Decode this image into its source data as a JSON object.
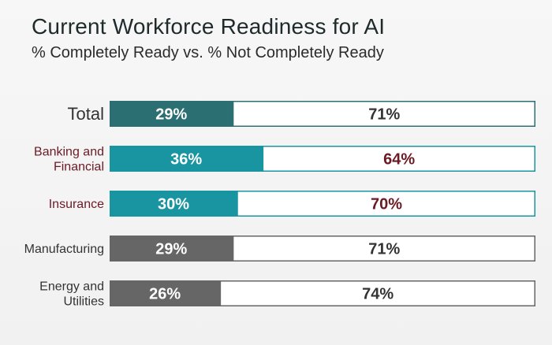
{
  "chart_data": {
    "type": "bar",
    "stacked": true,
    "orientation": "horizontal",
    "title": "Current Workforce Readiness for AI",
    "subtitle": "% Completely Ready vs. % Not Completely Ready",
    "categories": [
      "Total",
      "Banking and Financial",
      "Insurance",
      "Manufacturing",
      "Energy and Utilities"
    ],
    "category_lines": [
      [
        "Total"
      ],
      [
        "Banking and",
        "Financial"
      ],
      [
        "Insurance"
      ],
      [
        "Manufacturing"
      ],
      [
        "Energy and",
        "Utilities"
      ]
    ],
    "series": [
      {
        "values": [
          29,
          36,
          30,
          29,
          26
        ]
      },
      {
        "values": [
          71,
          64,
          70,
          71,
          74
        ]
      }
    ],
    "value_labels": [
      [
        "29%",
        "36%",
        "30%",
        "29%",
        "26%"
      ],
      [
        "71%",
        "64%",
        "70%",
        "71%",
        "74%"
      ]
    ],
    "xlim": [
      0,
      100
    ],
    "grid": false,
    "legend": "none"
  },
  "colors": {
    "ready_fill": [
      "#2b6f72",
      "#1995a2",
      "#1995a2",
      "#666666",
      "#666666"
    ],
    "bar_border": [
      "#2b6f72",
      "#1995a2",
      "#1995a2",
      "#666666",
      "#666666"
    ],
    "not_ready_text": [
      "#333333",
      "#6b1a24",
      "#6b1a24",
      "#333333",
      "#333333"
    ],
    "category_text": [
      "#333333",
      "#6b1a24",
      "#6b1a24",
      "#333333",
      "#333333"
    ],
    "not_ready_fill": "#ffffff",
    "ready_text": "#ffffff"
  }
}
